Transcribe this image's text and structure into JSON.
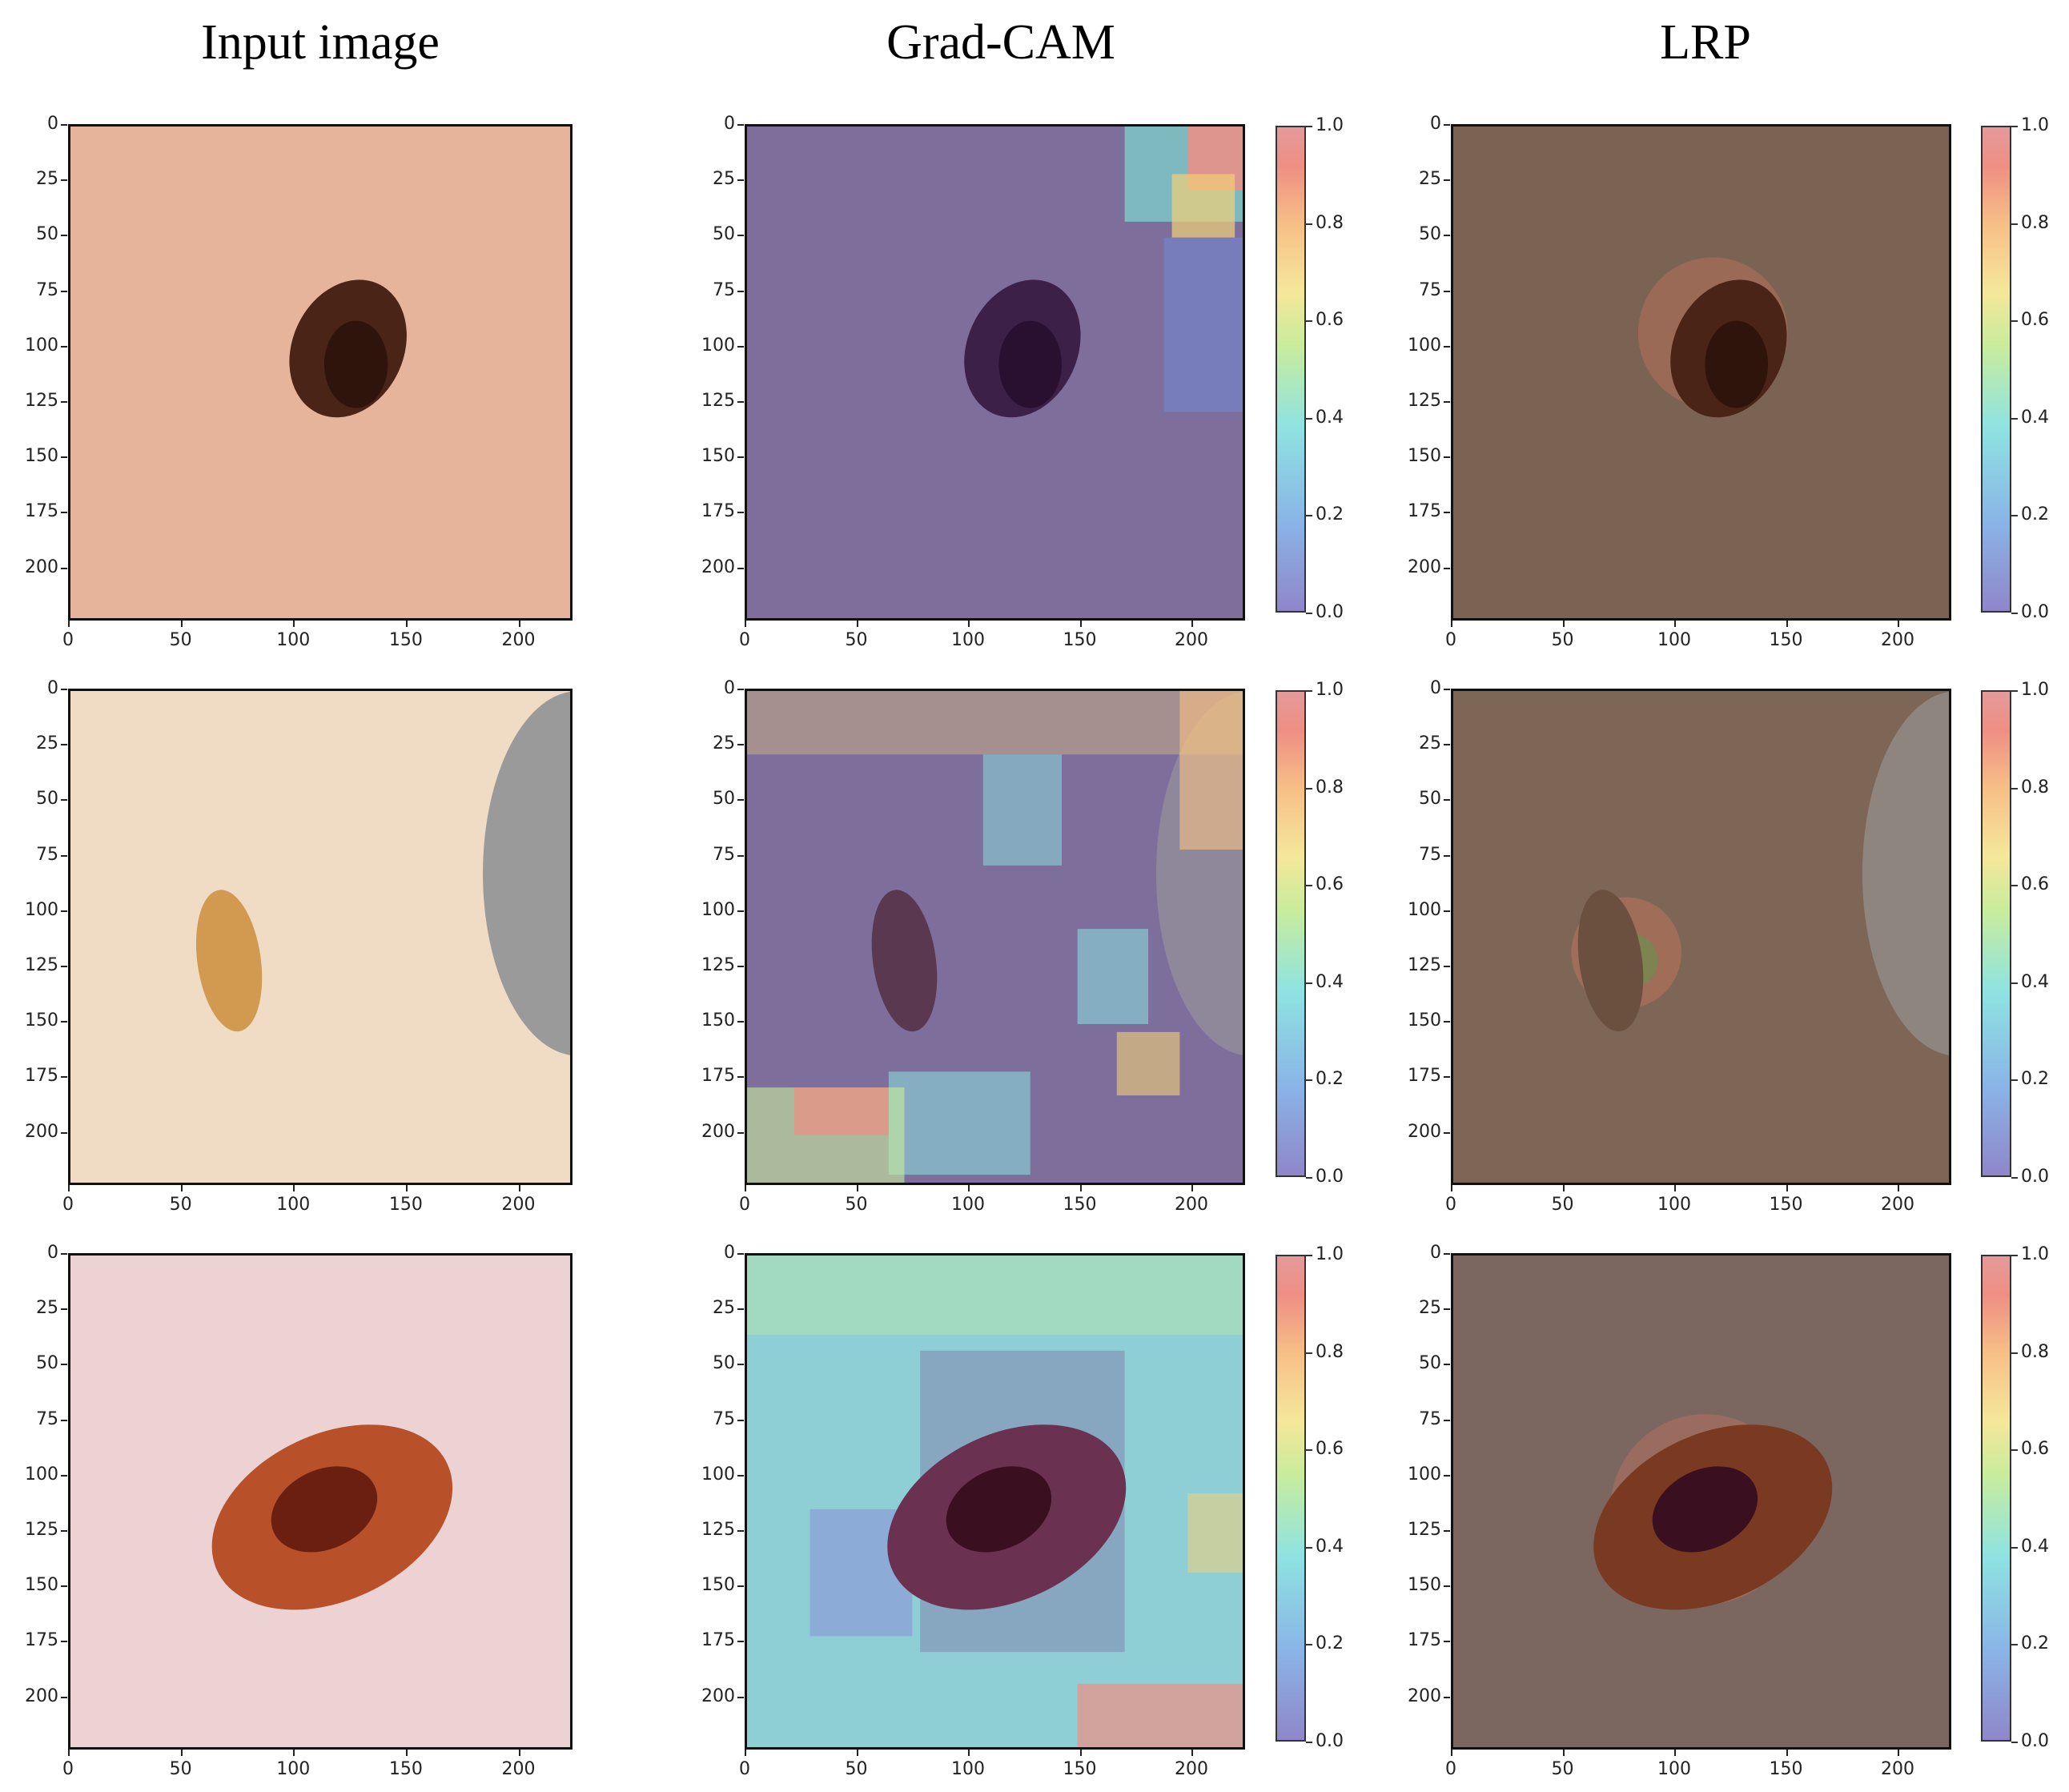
{
  "columns": [
    {
      "title": "Input image"
    },
    {
      "title": "Grad-CAM"
    },
    {
      "title": "LRP"
    }
  ],
  "axes": {
    "y_ticks": [
      "0",
      "25",
      "50",
      "75",
      "100",
      "125",
      "150",
      "175",
      "200"
    ],
    "x_ticks": [
      "0",
      "50",
      "100",
      "150",
      "200"
    ]
  },
  "colorbar": {
    "ticks": [
      "0.0",
      "0.2",
      "0.4",
      "0.6",
      "0.8",
      "1.0"
    ]
  },
  "colors": {
    "skin_light": "#e8b89c",
    "lesion_dark": "#5a2a1a",
    "gradcam_base": "#7a6b9e",
    "lrp_base": "#7a6556"
  }
}
